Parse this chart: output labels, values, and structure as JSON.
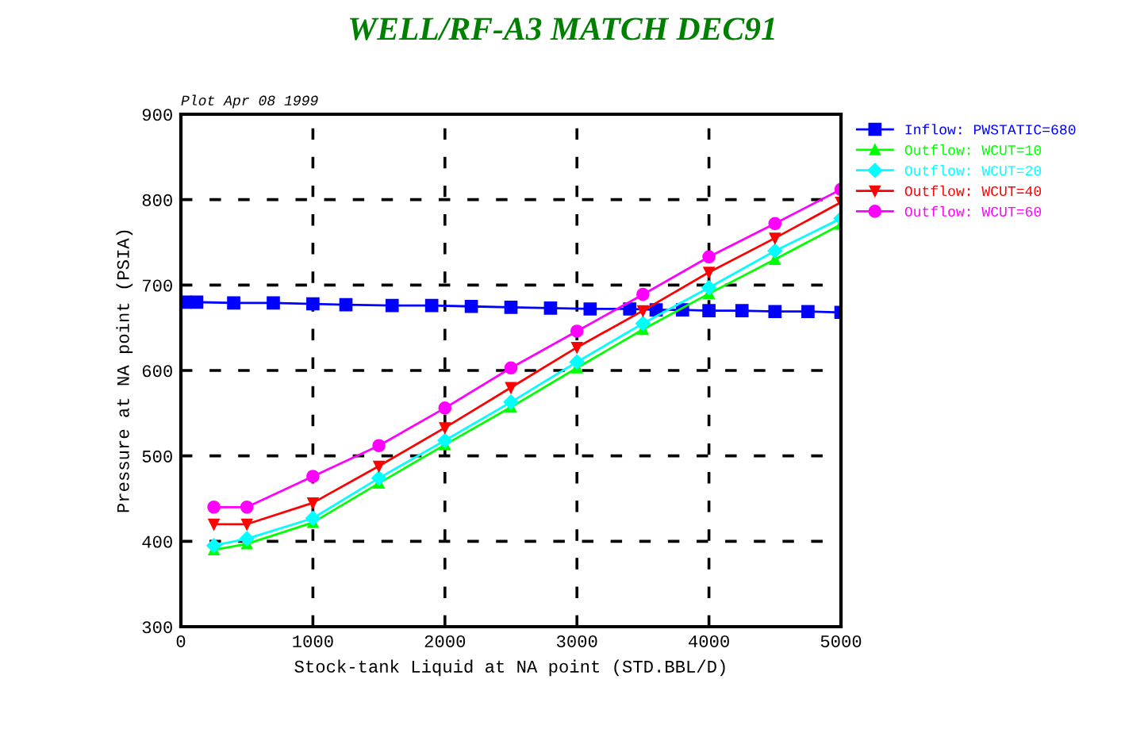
{
  "chart_data": {
    "type": "line",
    "title": "WELL/RF-A3 MATCH DEC91",
    "xlabel": "Stock-tank Liquid at NA point (STD.BBL/D)",
    "ylabel": "Pressure at NA point (PSIA)",
    "annotations": [
      "Plot Apr 08 1999"
    ],
    "xlim": [
      0,
      5000
    ],
    "xticks": [
      0,
      1000,
      2000,
      3000,
      4000,
      5000
    ],
    "ylim": [
      300,
      900
    ],
    "yticks": [
      300,
      400,
      500,
      600,
      700,
      800,
      900
    ],
    "grid": true,
    "legend": "top right",
    "line_style": "solid",
    "series": [
      {
        "name": "Inflow: PWSTATIC=680",
        "color": "#0000ff",
        "marker": "square",
        "x": [
          30,
          120,
          400,
          700,
          1000,
          1250,
          1600,
          1900,
          2200,
          2500,
          2800,
          3100,
          3400,
          3600,
          3800,
          4000,
          4250,
          4500,
          4750,
          5000
        ],
        "values": [
          680,
          680,
          679,
          679,
          678,
          677,
          676,
          676,
          675,
          674,
          673,
          672,
          672,
          671,
          671,
          670,
          670,
          669,
          669,
          668
        ]
      },
      {
        "name": "Outflow: WCUT=10",
        "color": "#00ff00",
        "marker": "triangle",
        "x": [
          250,
          500,
          1000,
          1500,
          2000,
          2500,
          3000,
          3500,
          4000,
          4500,
          5000
        ],
        "values": [
          390,
          397,
          422,
          468,
          513,
          557,
          603,
          648,
          690,
          730,
          771
        ]
      },
      {
        "name": "Outflow: WCUT=20",
        "color": "#00ffff",
        "marker": "diamond",
        "x": [
          250,
          500,
          1000,
          1500,
          2000,
          2500,
          3000,
          3500,
          4000,
          4500,
          5000
        ],
        "values": [
          395,
          403,
          427,
          474,
          518,
          563,
          610,
          655,
          697,
          740,
          778
        ]
      },
      {
        "name": "Outflow: WCUT=40",
        "color": "#ff0000",
        "marker": "triangle_down",
        "x": [
          250,
          500,
          1000,
          1500,
          2000,
          2500,
          3000,
          3500,
          4000,
          4500,
          5000
        ],
        "values": [
          420,
          420,
          445,
          488,
          533,
          580,
          627,
          670,
          715,
          755,
          797
        ]
      },
      {
        "name": "Outflow: WCUT=60",
        "color": "#ff00ff",
        "marker": "circle",
        "x": [
          250,
          500,
          1000,
          1500,
          2000,
          2500,
          3000,
          3500,
          4000,
          4500,
          5000
        ],
        "values": [
          440,
          440,
          476,
          512,
          556,
          603,
          646,
          689,
          733,
          772,
          812
        ]
      }
    ]
  }
}
